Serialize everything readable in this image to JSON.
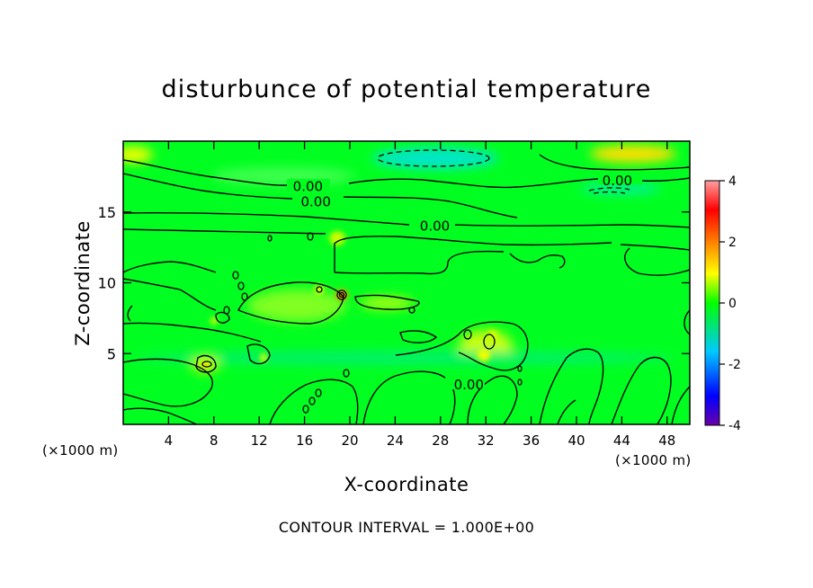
{
  "chart_data": {
    "type": "heatmap",
    "title": "disturbunce of potential temperature",
    "xlabel": "X-coordinate",
    "ylabel": "Z-coordinate",
    "x_unit": "(×1000 m)",
    "y_unit": "(×1000 m)",
    "xlim": [
      0,
      50
    ],
    "ylim": [
      0,
      20
    ],
    "x_ticks": [
      4,
      8,
      12,
      16,
      20,
      24,
      28,
      32,
      36,
      40,
      44,
      48
    ],
    "y_ticks": [
      5,
      10,
      15
    ],
    "colorbar": {
      "ticks": [
        4,
        2,
        0,
        -2,
        -4
      ],
      "range": [
        -4,
        4
      ],
      "colors": [
        "#6a00a8",
        "#0000ff",
        "#00c8ff",
        "#00ff00",
        "#ffff00",
        "#ff8000",
        "#ff0000",
        "#ff9fa0"
      ]
    },
    "contour_labels": [
      {
        "text": "0.00",
        "x": 16.3,
        "z": 16.8
      },
      {
        "text": "0.00",
        "x": 17.0,
        "z": 15.7
      },
      {
        "text": "0.00",
        "x": 27.5,
        "z": 14.0
      },
      {
        "text": "0.00",
        "x": 43.6,
        "z": 17.2
      },
      {
        "text": "0.00",
        "x": 30.5,
        "z": 2.8
      }
    ],
    "contour_interval_text": "CONTOUR INTERVAL = 1.000E+00",
    "background_value": 0.0,
    "anomalies": [
      {
        "x": 0.8,
        "z": 18.8,
        "value": 1.0
      },
      {
        "x": 45.0,
        "z": 18.9,
        "value": 1.2
      },
      {
        "x": 31.5,
        "z": 18.9,
        "value": -0.8
      },
      {
        "x": 43.5,
        "z": 16.6,
        "value": -0.6
      },
      {
        "x": 19.0,
        "z": 9.0,
        "value": 2.0
      },
      {
        "x": 31.5,
        "z": 5.4,
        "value": 1.5
      },
      {
        "x": 7.5,
        "z": 4.2,
        "value": 1.0
      },
      {
        "x": 17.2,
        "z": 9.3,
        "value": 1.0
      },
      {
        "x": 23.5,
        "z": 8.5,
        "value": 0.8
      },
      {
        "x": 16.0,
        "z": 4.5,
        "value": -0.3
      },
      {
        "x": 36.0,
        "z": 4.5,
        "value": -0.3
      }
    ]
  }
}
